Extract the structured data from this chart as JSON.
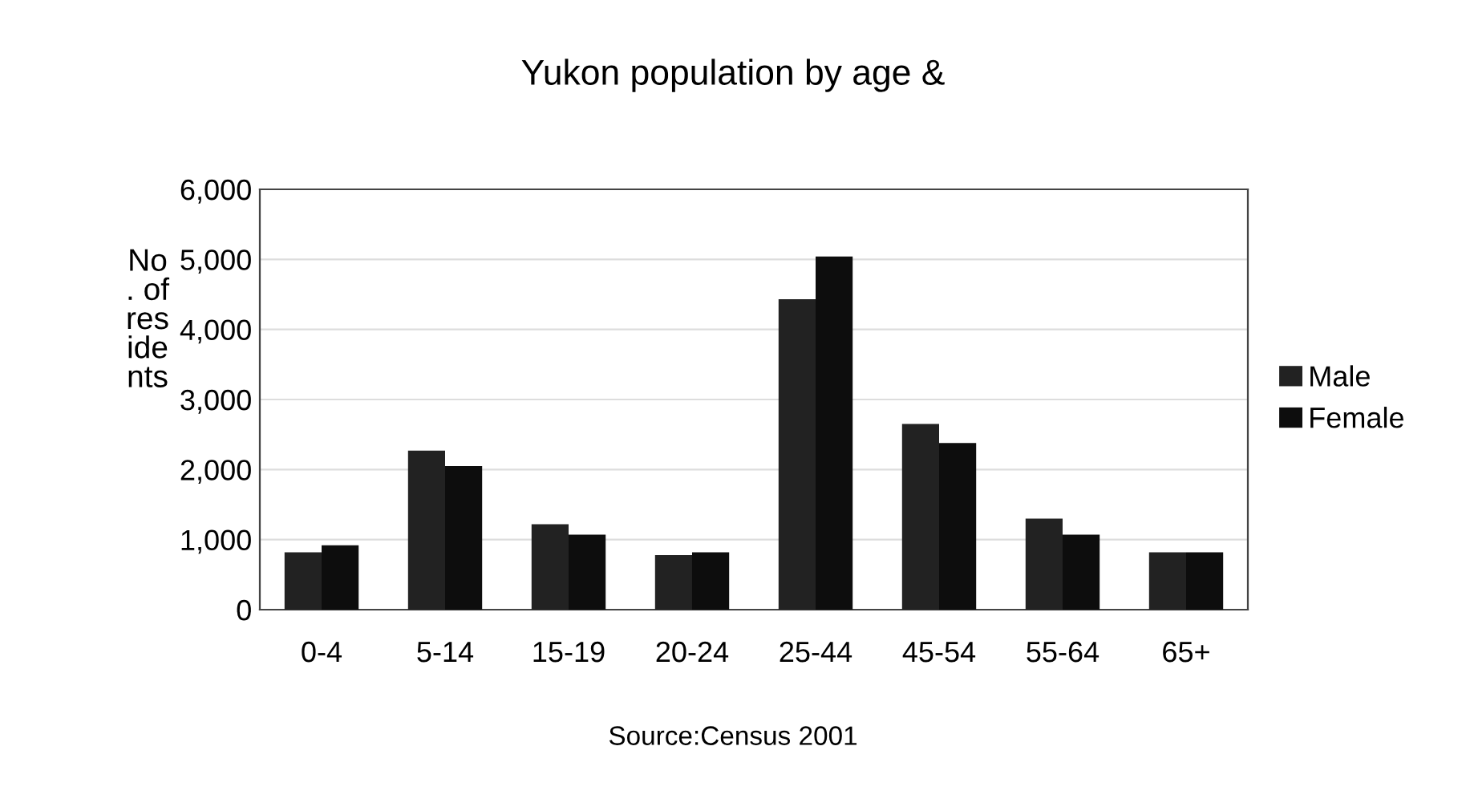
{
  "chart_data": {
    "type": "bar",
    "title": "Yukon population by age &",
    "ylabel": "No\n. of\nres\nide\nnts",
    "categories": [
      "0-4",
      "5-14",
      "15-19",
      "20-24",
      "25-44",
      "45-54",
      "55-64",
      "65+"
    ],
    "series": [
      {
        "name": "Male",
        "color": "#222222",
        "values": [
          820,
          2270,
          1220,
          780,
          4430,
          2650,
          1300,
          820
        ]
      },
      {
        "name": "Female",
        "color": "#0d0d0d",
        "values": [
          920,
          2050,
          1070,
          820,
          5040,
          2380,
          1070,
          820
        ]
      }
    ],
    "ylim": [
      0,
      6000
    ],
    "yticks": [
      {
        "value": 0,
        "label": "0"
      },
      {
        "value": 1000,
        "label": "1,000"
      },
      {
        "value": 2000,
        "label": "2,000"
      },
      {
        "value": 3000,
        "label": "3,000"
      },
      {
        "value": 4000,
        "label": "4,000"
      },
      {
        "value": 5000,
        "label": "5,000"
      },
      {
        "value": 6000,
        "label": "6,000"
      }
    ],
    "grid": "y",
    "legend": "right",
    "annotations": [
      "Source:Census 2001"
    ]
  }
}
